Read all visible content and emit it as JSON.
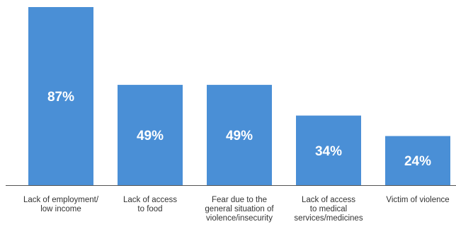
{
  "chart_data": {
    "type": "bar",
    "categories": [
      [
        "Lack of employment/",
        "low income"
      ],
      [
        "Lack of access",
        "to food"
      ],
      [
        "Fear due to the",
        "general situation of",
        "violence/insecurity"
      ],
      [
        "Lack of access",
        "to medical",
        "services/medicines"
      ],
      [
        "Victim of violence"
      ]
    ],
    "values": [
      87,
      49,
      49,
      34,
      24
    ],
    "value_labels": [
      "87%",
      "49%",
      "49%",
      "34%",
      "24%"
    ],
    "unit": "%",
    "ylim": [
      0,
      87
    ],
    "grid": false,
    "legend": "none",
    "colors": {
      "bar": "#4a8fd6",
      "bar_label": "#ffffff",
      "axis": "#555555",
      "tick_label": "#333333"
    }
  }
}
